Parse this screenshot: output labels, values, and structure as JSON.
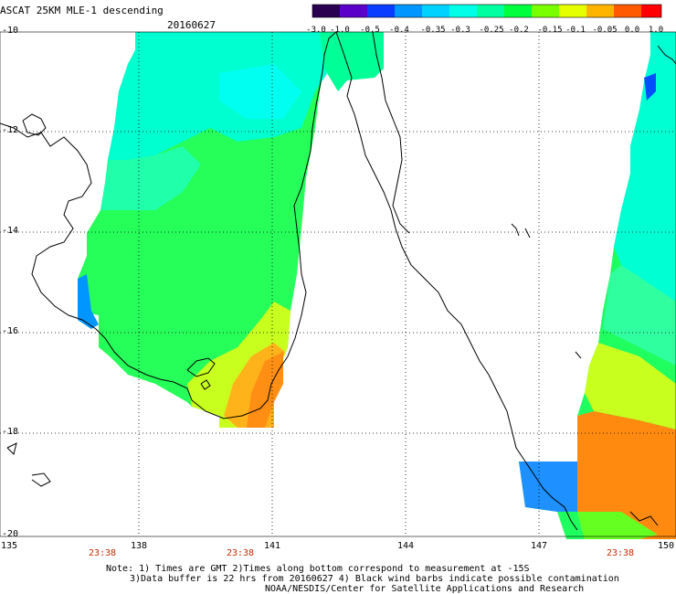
{
  "header": {
    "title": "ASCAT 25KM MLE-1 descending",
    "date": "20160627"
  },
  "colorbar": {
    "labels": [
      "-3.0",
      "-1.0",
      "-0.5",
      "-0.4",
      "-0.35",
      "-0.3",
      "-0.25",
      "-0.2",
      "-0.15",
      "-0.1",
      "-0.05",
      "0.0",
      "1.0"
    ],
    "colors": [
      "#2a0050",
      "#5a00c8",
      "#0a3cff",
      "#0096ff",
      "#00d2ff",
      "#00ffe6",
      "#00ffa0",
      "#00ff3c",
      "#7aff00",
      "#e6ff00",
      "#ffb400",
      "#ff5a00",
      "#ff0000"
    ]
  },
  "axes": {
    "lat_labels": [
      "-10",
      "-12",
      "-14",
      "-16",
      "-18",
      "-20"
    ],
    "lon_labels": [
      "135",
      "138",
      "141",
      "144",
      "147",
      "150"
    ],
    "time_labels": [
      "23:38",
      "23:38",
      "23:38"
    ]
  },
  "notes": {
    "line1": "Note: 1) Times are GMT 2)Times along bottom correspond to measurement at -15S",
    "line2": "3)Data buffer is 22 hrs from 20160627 4) Black wind barbs indicate possible contamination",
    "line3": "NOAA/NESDIS/Center for Satellite Applications and Research"
  },
  "legend_colors": {
    "cyan": "#00ffe0",
    "green": "#00ff40",
    "yellow": "#e6ff00",
    "orange": "#ff8a00",
    "blue": "#0080ff"
  }
}
